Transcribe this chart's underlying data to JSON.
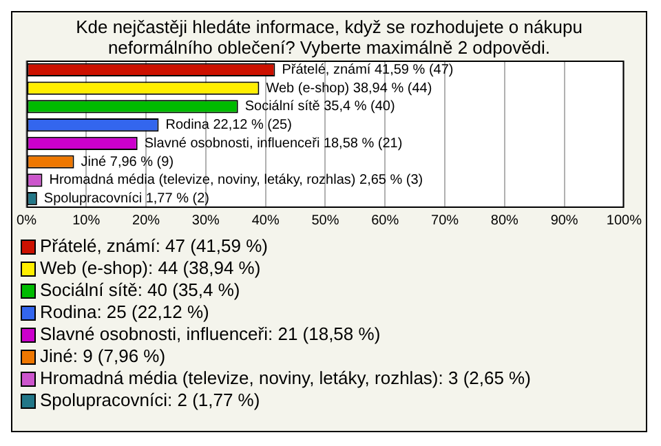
{
  "chart_data": {
    "type": "bar",
    "orientation": "horizontal",
    "stacked": true,
    "title": "Kde nejčastěji hledáte informace, když se rozhodujete o nákupu neformálního oblečení? Vyberte maximálně 2 odpovědi.",
    "categories": [
      null,
      null,
      null,
      null,
      null,
      null,
      null,
      null
    ],
    "series": [
      {
        "name": "Přátelé, známí: 47 (41,59 %)",
        "color": "#cc1100",
        "values": [
          41.59,
          null,
          null,
          null,
          null,
          null,
          null,
          null
        ],
        "value_labels": [
          "Přátelé, známí 41,59 % (47)",
          null,
          null,
          null,
          null,
          null,
          null,
          null
        ]
      },
      {
        "name": "Web (e-shop): 44 (38,94 %)",
        "color": "#ffee00",
        "values": [
          null,
          38.94,
          null,
          null,
          null,
          null,
          null,
          null
        ],
        "value_labels": [
          null,
          "Web (e-shop) 38,94 % (44)",
          null,
          null,
          null,
          null,
          null,
          null
        ]
      },
      {
        "name": "Sociální sítě: 40 (35,4 %)",
        "color": "#00bb00",
        "values": [
          null,
          null,
          35.4,
          null,
          null,
          null,
          null,
          null
        ],
        "value_labels": [
          null,
          null,
          "Sociální sítě 35,4 % (40)",
          null,
          null,
          null,
          null,
          null
        ]
      },
      {
        "name": "Rodina: 25 (22,12 %)",
        "color": "#3366ee",
        "values": [
          null,
          null,
          null,
          22.12,
          null,
          null,
          null,
          null
        ],
        "value_labels": [
          null,
          null,
          null,
          "Rodina 22,12 % (25)",
          null,
          null,
          null,
          null
        ]
      },
      {
        "name": "Slavné osobnosti, influenceři: 21 (18,58 %)",
        "color": "#cc00cc",
        "values": [
          null,
          null,
          null,
          null,
          18.58,
          null,
          null,
          null
        ],
        "value_labels": [
          null,
          null,
          null,
          null,
          "Slavné osobnosti, influenceři 18,58 % (21)",
          null,
          null,
          null
        ]
      },
      {
        "name": "Jiné: 9 (7,96 %)",
        "color": "#ee7700",
        "values": [
          null,
          null,
          null,
          null,
          null,
          7.96,
          null,
          null
        ],
        "value_labels": [
          null,
          null,
          null,
          null,
          null,
          "Jiné 7,96 % (9)",
          null,
          null
        ]
      },
      {
        "name": "Hromadná média (televize, noviny, letáky, rozhlas): 3 (2,65 %)",
        "color": "#cc55cc",
        "values": [
          null,
          null,
          null,
          null,
          null,
          null,
          2.65,
          null
        ],
        "value_labels": [
          null,
          null,
          null,
          null,
          null,
          null,
          "Hromadná média (televize, noviny, letáky, rozhlas) 2,65 % (3)",
          null
        ]
      },
      {
        "name": "Spolupracovníci: 2 (1,77 %)",
        "color": "#227788",
        "values": [
          null,
          null,
          null,
          null,
          null,
          null,
          null,
          1.77
        ],
        "value_labels": [
          null,
          null,
          null,
          null,
          null,
          null,
          null,
          "Spolupracovníci 1,77 % (2)"
        ]
      }
    ],
    "xlim": [
      0,
      100
    ],
    "xticks": [
      {
        "value": 0,
        "label": "0%"
      },
      {
        "value": 10,
        "label": "10%"
      },
      {
        "value": 20,
        "label": "20%"
      },
      {
        "value": 30,
        "label": "30%"
      },
      {
        "value": 40,
        "label": "40%"
      },
      {
        "value": 50,
        "label": "50%"
      },
      {
        "value": 60,
        "label": "60%"
      },
      {
        "value": 70,
        "label": "70%"
      },
      {
        "value": 80,
        "label": "80%"
      },
      {
        "value": 90,
        "label": "90%"
      },
      {
        "value": 100,
        "label": "100%"
      }
    ],
    "grid": "x",
    "tick_labels": "x",
    "legend": "bottom"
  }
}
